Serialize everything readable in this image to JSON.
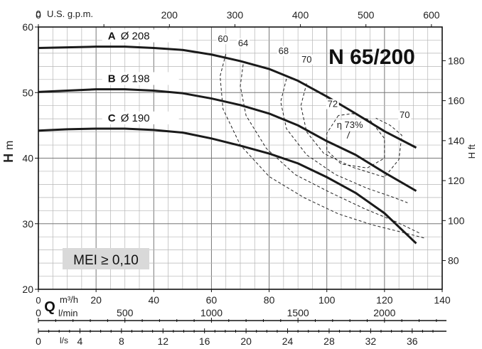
{
  "chart_data": {
    "type": "line",
    "title": "N 65/200",
    "badge": "MEI ≥ 0,10",
    "x_axes": {
      "q_m3h": {
        "unit": "m³/h",
        "symbol": "Q",
        "range": [
          0,
          140
        ],
        "ticks": [
          0,
          20,
          40,
          60,
          80,
          100,
          120,
          140
        ],
        "ticklabels": [
          "0",
          "20",
          "40",
          "60",
          "80",
          "100",
          "120",
          "140"
        ]
      },
      "q_lmin": {
        "unit": "l/min",
        "ticks": [
          0,
          500,
          1000,
          1500,
          2000
        ],
        "ticklabels": [
          "0",
          "500",
          "1000",
          "1500",
          "2000"
        ]
      },
      "q_ls": {
        "unit": "l/s",
        "ticks": [
          0,
          4,
          8,
          12,
          16,
          20,
          24,
          28,
          32,
          36
        ],
        "ticklabels": [
          "0",
          "4",
          "8",
          "12",
          "16",
          "20",
          "24",
          "28",
          "32",
          "36"
        ]
      },
      "q_usgpm": {
        "unit": "U.S. g.p.m.",
        "ticks": [
          0,
          100,
          200,
          300,
          400,
          500,
          600
        ],
        "ticklabels": [
          "0",
          "",
          "200",
          "300",
          "400",
          "500",
          "600"
        ]
      }
    },
    "y_axes": {
      "h_m": {
        "symbol": "H",
        "unit": "m",
        "range": [
          20,
          60
        ],
        "ticks": [
          20,
          30,
          40,
          50,
          60
        ],
        "ticklabels": [
          "20",
          "30",
          "40",
          "50",
          "60"
        ]
      },
      "h_ft": {
        "label": "H ft",
        "ticks": [
          80,
          100,
          120,
          140,
          160,
          180
        ],
        "ticklabels": [
          "80",
          "100",
          "120",
          "140",
          "160",
          "180"
        ]
      }
    },
    "series": [
      {
        "name": "A",
        "label": "Ø 208",
        "x": [
          0,
          10,
          20,
          30,
          40,
          50,
          60,
          70,
          80,
          90,
          100,
          110,
          120,
          131
        ],
        "y": [
          56.8,
          56.9,
          57.0,
          57.0,
          56.8,
          56.5,
          55.8,
          54.8,
          53.6,
          51.8,
          49.4,
          46.8,
          44.1,
          41.6
        ]
      },
      {
        "name": "B",
        "label": "Ø 198",
        "x": [
          0,
          10,
          20,
          30,
          40,
          50,
          60,
          70,
          80,
          90,
          100,
          110,
          120,
          131
        ],
        "y": [
          50.1,
          50.3,
          50.5,
          50.5,
          50.3,
          49.9,
          49.1,
          48.1,
          46.8,
          45.0,
          42.6,
          40.5,
          37.8,
          35.0
        ]
      },
      {
        "name": "C",
        "label": "Ø 190",
        "x": [
          0,
          10,
          20,
          30,
          40,
          50,
          60,
          70,
          80,
          90,
          100,
          110,
          120,
          131
        ],
        "y": [
          44.2,
          44.4,
          44.5,
          44.5,
          44.3,
          43.9,
          43.0,
          41.9,
          40.7,
          39.2,
          37.1,
          34.7,
          31.6,
          27.0
        ]
      }
    ],
    "efficiency_contours": [
      {
        "label": "60",
        "x": [
          65,
          63,
          64,
          70,
          80,
          92,
          104,
          116,
          127,
          134
        ],
        "y": [
          55.9,
          52.5,
          47.5,
          42.0,
          37.2,
          34.0,
          31.5,
          29.8,
          28.6,
          27.8
        ]
      },
      {
        "label": "64",
        "x": [
          71,
          70,
          72,
          79,
          89,
          101,
          113,
          124,
          132
        ],
        "y": [
          54.3,
          51.0,
          46.5,
          41.5,
          37.5,
          34.8,
          32.3,
          30.3,
          28.6
        ]
      },
      {
        "label": "68",
        "x": [
          86,
          84,
          86,
          93,
          103,
          114,
          122,
          128
        ],
        "y": [
          52.1,
          48.6,
          44.5,
          40.5,
          37.5,
          35.4,
          34.2,
          33.2
        ]
      },
      {
        "label": "70",
        "x": [
          93,
          91,
          93,
          99,
          109,
          120,
          125,
          126,
          122,
          117
        ],
        "y": [
          51.4,
          48.0,
          44.0,
          40.7,
          38.6,
          37.1,
          39.8,
          43.5,
          45.0,
          46.1
        ]
      },
      {
        "label": "72",
        "x": [
          104,
          100,
          100,
          105,
          114,
          120,
          120,
          115,
          109,
          104
        ],
        "y": [
          46.5,
          43.8,
          41.2,
          39.1,
          38.5,
          40.0,
          43.0,
          45.8,
          46.8,
          46.5
        ]
      }
    ],
    "contour_labels": [
      {
        "text": "60",
        "x": 64,
        "y": 57.7
      },
      {
        "text": "64",
        "x": 71,
        "y": 57.1
      },
      {
        "text": "68",
        "x": 85,
        "y": 55.9
      },
      {
        "text": "70",
        "x": 93,
        "y": 54.6
      },
      {
        "text": "72",
        "x": 102,
        "y": 47.8
      },
      {
        "text": "η 73%",
        "x": 108,
        "y": 44.6
      },
      {
        "text": "70",
        "x": 127,
        "y": 46.1
      }
    ],
    "efficiency_peak": {
      "x": 107,
      "y": 43.0
    },
    "grid": true
  }
}
